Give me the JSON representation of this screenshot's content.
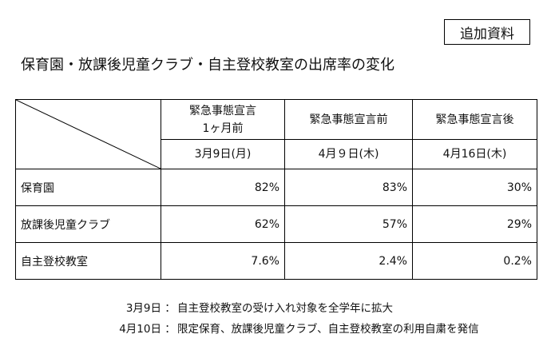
{
  "tag": "追加資料",
  "title": "保育園・放課後児童クラブ・自主登校教室の出席率の変化",
  "table": {
    "columns": [
      {
        "line1": "緊急事態宣言",
        "line2": "1ヶ月前",
        "date": "3月9日(月)"
      },
      {
        "line1": "緊急事態宣言前",
        "line2": "",
        "date": "4月９日(木)"
      },
      {
        "line1": "緊急事態宣言後",
        "line2": "",
        "date": "4月16日(木)"
      }
    ],
    "rows": [
      {
        "label": "保育園",
        "values": [
          "82%",
          "83%",
          "30%"
        ]
      },
      {
        "label": "放課後児童クラブ",
        "values": [
          "62%",
          "57%",
          "29%"
        ]
      },
      {
        "label": "自主登校教室",
        "values": [
          "7.6%",
          "2.4%",
          "0.2%"
        ]
      }
    ]
  },
  "notes": [
    {
      "date": "3月9日",
      "separator": "：",
      "text": "自主登校教室の受け入れ対象を全学年に拡大"
    },
    {
      "date": "4月10日",
      "separator": "：",
      "text": "限定保育、放課後児童クラブ、自主登校教室の利用自粛を発信"
    }
  ]
}
